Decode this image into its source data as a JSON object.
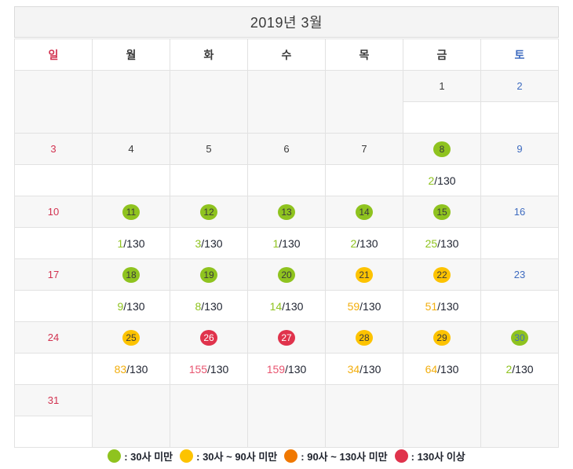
{
  "title": "2019년 3월",
  "capacity_suffix": "/130",
  "day_headers": [
    {
      "key": "sun",
      "label": "일",
      "type": "sun"
    },
    {
      "key": "mon",
      "label": "월",
      "type": "weekday"
    },
    {
      "key": "tue",
      "label": "화",
      "type": "weekday"
    },
    {
      "key": "wed",
      "label": "수",
      "type": "weekday"
    },
    {
      "key": "thu",
      "label": "목",
      "type": "weekday"
    },
    {
      "key": "fri",
      "label": "금",
      "type": "weekday"
    },
    {
      "key": "sat",
      "label": "토",
      "type": "sat"
    }
  ],
  "weeks": [
    {
      "days": [
        {
          "empty": true
        },
        {
          "empty": true
        },
        {
          "empty": true
        },
        {
          "empty": true
        },
        {
          "empty": true
        },
        {
          "date": "1",
          "day_type": "weekday"
        },
        {
          "date": "2",
          "day_type": "sat"
        }
      ]
    },
    {
      "days": [
        {
          "date": "3",
          "day_type": "sun"
        },
        {
          "date": "4",
          "day_type": "weekday"
        },
        {
          "date": "5",
          "day_type": "weekday"
        },
        {
          "date": "6",
          "day_type": "weekday"
        },
        {
          "date": "7",
          "day_type": "weekday"
        },
        {
          "date": "8",
          "day_type": "weekday",
          "status": "green",
          "count": "2"
        },
        {
          "date": "9",
          "day_type": "sat"
        }
      ]
    },
    {
      "days": [
        {
          "date": "10",
          "day_type": "sun"
        },
        {
          "date": "11",
          "day_type": "weekday",
          "status": "green",
          "count": "1"
        },
        {
          "date": "12",
          "day_type": "weekday",
          "status": "green",
          "count": "3"
        },
        {
          "date": "13",
          "day_type": "weekday",
          "status": "green",
          "count": "1"
        },
        {
          "date": "14",
          "day_type": "weekday",
          "status": "green",
          "count": "2"
        },
        {
          "date": "15",
          "day_type": "weekday",
          "status": "green",
          "count": "25"
        },
        {
          "date": "16",
          "day_type": "sat"
        }
      ]
    },
    {
      "days": [
        {
          "date": "17",
          "day_type": "sun"
        },
        {
          "date": "18",
          "day_type": "weekday",
          "status": "green",
          "count": "9"
        },
        {
          "date": "19",
          "day_type": "weekday",
          "status": "green",
          "count": "8"
        },
        {
          "date": "20",
          "day_type": "weekday",
          "status": "green",
          "count": "14"
        },
        {
          "date": "21",
          "day_type": "weekday",
          "status": "yellow",
          "count": "59"
        },
        {
          "date": "22",
          "day_type": "weekday",
          "status": "yellow",
          "count": "51",
          "pink": true
        },
        {
          "date": "23",
          "day_type": "sat"
        }
      ]
    },
    {
      "days": [
        {
          "date": "24",
          "day_type": "sun"
        },
        {
          "date": "25",
          "day_type": "weekday",
          "status": "yellow",
          "count": "83"
        },
        {
          "date": "26",
          "day_type": "weekday",
          "status": "red",
          "count": "155",
          "pink": true
        },
        {
          "date": "27",
          "day_type": "weekday",
          "status": "red",
          "count": "159",
          "pink": true
        },
        {
          "date": "28",
          "day_type": "weekday",
          "status": "yellow",
          "count": "34",
          "pink": true
        },
        {
          "date": "29",
          "day_type": "weekday",
          "status": "yellow",
          "count": "64",
          "pink": true
        },
        {
          "date": "30",
          "day_type": "sat",
          "status": "green",
          "count": "2"
        }
      ]
    },
    {
      "days": [
        {
          "date": "31",
          "day_type": "sun"
        },
        {
          "empty": true
        },
        {
          "empty": true
        },
        {
          "empty": true
        },
        {
          "empty": true
        },
        {
          "empty": true
        },
        {
          "empty": true
        }
      ]
    }
  ],
  "legend": [
    {
      "status": "green",
      "label": ": 30사 미만"
    },
    {
      "status": "yellow",
      "label": ": 30사 ~ 90사 미만"
    },
    {
      "status": "orange",
      "label": ": 90사 ~ 130사 미만"
    },
    {
      "status": "red",
      "label": ": 130사 이상"
    }
  ],
  "colors": {
    "green": "#8fc31f",
    "yellow": "#fdc300",
    "orange": "#f07800",
    "red": "#e0334c",
    "count_green": "#8fc31f",
    "count_yellow": "#f2ae0e",
    "count_red": "#e85570",
    "pink_bg": "#fdeaee",
    "sun_text": "#d23250",
    "sat_text": "#3f6cc0",
    "weekday_text": "#3a3a3a",
    "circle_text_red": "#ffffff"
  }
}
